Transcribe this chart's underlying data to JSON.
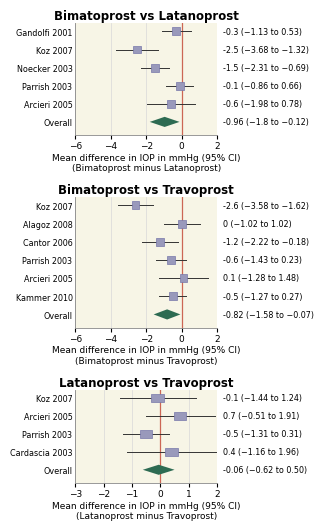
{
  "plots": [
    {
      "title": "Bimatoprost vs Latanoprost",
      "xlabel": "Mean difference in IOP in mmHg (95% CI)\n(Bimatoprost minus Latanoprost)",
      "xlim": [
        -6,
        2
      ],
      "xticks": [
        -6,
        -4,
        -2,
        0,
        2
      ],
      "studies": [
        "Gandolfi 2001",
        "Koz 2007",
        "Noecker 2003",
        "Parrish 2003",
        "Arcieri 2005",
        "Overall"
      ],
      "means": [
        -0.3,
        -2.5,
        -1.5,
        -0.1,
        -0.6,
        -0.96
      ],
      "ci_low": [
        -1.13,
        -3.68,
        -2.31,
        -0.86,
        -1.98,
        -1.8
      ],
      "ci_high": [
        0.53,
        -1.32,
        -0.69,
        0.66,
        0.78,
        -0.12
      ],
      "labels": [
        "-0.3 (−1.13 to 0.53)",
        "-2.5 (−3.68 to −1.32)",
        "-1.5 (−2.31 to −0.69)",
        "-0.1 (−0.86 to 0.66)",
        "-0.6 (−1.98 to 0.78)",
        "-0.96 (−1.8 to −0.12)"
      ],
      "is_overall": [
        false,
        false,
        false,
        false,
        false,
        true
      ]
    },
    {
      "title": "Bimatoprost vs Travoprost",
      "xlabel": "Mean difference in IOP in mmHg (95% CI)\n(Bimatoprost minus Travoprost)",
      "xlim": [
        -6,
        2
      ],
      "xticks": [
        -6,
        -4,
        -2,
        0,
        2
      ],
      "studies": [
        "Koz 2007",
        "Alagoz 2008",
        "Cantor 2006",
        "Parrish 2003",
        "Arcieri 2005",
        "Kammer 2010",
        "Overall"
      ],
      "means": [
        -2.6,
        0.0,
        -1.2,
        -0.6,
        0.1,
        -0.5,
        -0.82
      ],
      "ci_low": [
        -3.58,
        -1.02,
        -2.22,
        -1.43,
        -1.28,
        -1.27,
        -1.58
      ],
      "ci_high": [
        -1.62,
        1.02,
        -0.18,
        0.23,
        1.48,
        0.27,
        -0.07
      ],
      "labels": [
        "-2.6 (−3.58 to −1.62)",
        "0 (−1.02 to 1.02)",
        "-1.2 (−2.22 to −0.18)",
        "-0.6 (−1.43 to 0.23)",
        "0.1 (−1.28 to 1.48)",
        "-0.5 (−1.27 to 0.27)",
        "-0.82 (−1.58 to −0.07)"
      ],
      "is_overall": [
        false,
        false,
        false,
        false,
        false,
        false,
        true
      ]
    },
    {
      "title": "Latanoprost vs Travoprost",
      "xlabel": "Mean difference in IOP in mmHg (95% CI)\n(Latanoprost minus Travoprost)",
      "xlim": [
        -3,
        2
      ],
      "xticks": [
        -3,
        -2,
        -1,
        0,
        1,
        2
      ],
      "studies": [
        "Koz 2007",
        "Arcieri 2005",
        "Parrish 2003",
        "Cardascia 2003",
        "Overall"
      ],
      "means": [
        -0.1,
        0.7,
        -0.5,
        0.4,
        -0.06
      ],
      "ci_low": [
        -1.44,
        -0.51,
        -1.31,
        -1.16,
        -0.62
      ],
      "ci_high": [
        1.24,
        1.91,
        0.31,
        1.96,
        0.5
      ],
      "labels": [
        "-0.1 (−1.44 to 1.24)",
        "0.7 (−0.51 to 1.91)",
        "-0.5 (−1.31 to 0.31)",
        "0.4 (−1.16 to 1.96)",
        "-0.06 (−0.62 to 0.50)"
      ],
      "is_overall": [
        false,
        false,
        false,
        false,
        true
      ]
    }
  ],
  "bg_color": "#f7f5e6",
  "square_color": "#9999bb",
  "square_edge_color": "#7777aa",
  "diamond_color": "#2d6b52",
  "vline_color": "#cc6655",
  "grid_color": "#d8d8d8",
  "label_fontsize": 5.8,
  "title_fontsize": 8.5,
  "axis_fontsize": 6.5,
  "tick_fontsize": 6.5,
  "fig_width": 3.94,
  "fig_height": 5.0
}
